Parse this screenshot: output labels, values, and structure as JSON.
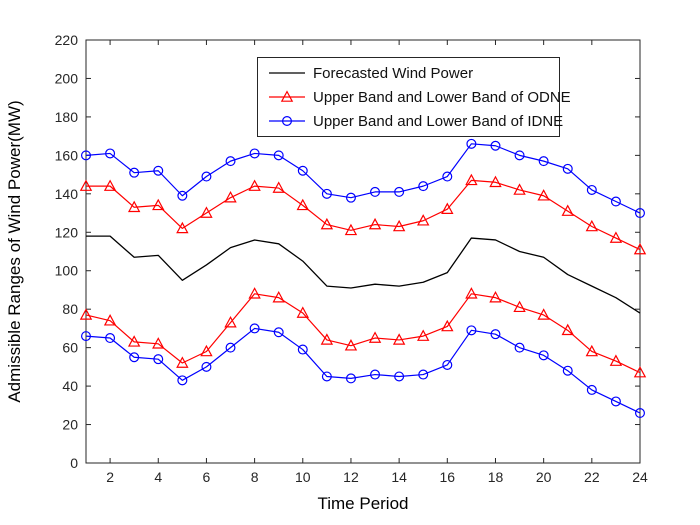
{
  "figure": {
    "background": "#ffffff",
    "frame_color": "#262626",
    "tick_label_color": "#262626",
    "axis_label_color": "#000000"
  },
  "legend": {
    "entries": [
      {
        "label": "Forecasted Wind Power",
        "color": "#000000",
        "marker": "none"
      },
      {
        "label": "Upper Band and Lower Band of ODNE",
        "color": "#ff0000",
        "marker": "triangle"
      },
      {
        "label": "Upper Band and Lower Band of IDNE",
        "color": "#0000ff",
        "marker": "circle"
      }
    ]
  },
  "chart_data": {
    "type": "line",
    "title": "",
    "xlabel": "Time Period",
    "ylabel": "Admissible Ranges of Wind Power(MW)",
    "xlim": [
      1,
      24
    ],
    "ylim": [
      0,
      220
    ],
    "xticks": [
      2,
      4,
      6,
      8,
      10,
      12,
      14,
      16,
      18,
      20,
      22,
      24
    ],
    "yticks": [
      0,
      20,
      40,
      60,
      80,
      100,
      120,
      140,
      160,
      180,
      200,
      220
    ],
    "grid": false,
    "legend_position": "upper-center-inside",
    "x": [
      1,
      2,
      3,
      4,
      5,
      6,
      7,
      8,
      9,
      10,
      11,
      12,
      13,
      14,
      15,
      16,
      17,
      18,
      19,
      20,
      21,
      22,
      23,
      24
    ],
    "series": [
      {
        "name": "Upper Band of IDNE",
        "legend": "Upper Band and Lower Band of IDNE",
        "color": "#0000ff",
        "marker": "circle",
        "values": [
          160,
          161,
          151,
          152,
          139,
          149,
          157,
          161,
          160,
          152,
          140,
          138,
          141,
          141,
          144,
          149,
          166,
          165,
          160,
          157,
          153,
          142,
          136,
          130
        ]
      },
      {
        "name": "Lower Band of IDNE",
        "legend": "Upper Band and Lower Band of IDNE",
        "color": "#0000ff",
        "marker": "circle",
        "values": [
          66,
          65,
          55,
          54,
          43,
          50,
          60,
          70,
          68,
          59,
          45,
          44,
          46,
          45,
          46,
          51,
          69,
          67,
          60,
          56,
          48,
          38,
          32,
          26
        ]
      },
      {
        "name": "Upper Band of ODNE",
        "legend": "Upper Band and Lower Band of ODNE",
        "color": "#ff0000",
        "marker": "triangle",
        "values": [
          144,
          144,
          133,
          134,
          122,
          130,
          138,
          144,
          143,
          134,
          124,
          121,
          124,
          123,
          126,
          132,
          147,
          146,
          142,
          139,
          131,
          123,
          117,
          111
        ]
      },
      {
        "name": "Lower Band of ODNE",
        "legend": "Upper Band and Lower Band of ODNE",
        "color": "#ff0000",
        "marker": "triangle",
        "values": [
          77,
          74,
          63,
          62,
          52,
          58,
          73,
          88,
          86,
          78,
          64,
          61,
          65,
          64,
          66,
          71,
          88,
          86,
          81,
          77,
          69,
          58,
          53,
          47
        ]
      },
      {
        "name": "Forecasted Wind Power",
        "legend": "Forecasted Wind Power",
        "color": "#000000",
        "marker": "none",
        "values": [
          118,
          118,
          107,
          108,
          95,
          103,
          112,
          116,
          114,
          105,
          92,
          91,
          93,
          92,
          94,
          99,
          117,
          116,
          110,
          107,
          98,
          92,
          86,
          78
        ]
      }
    ]
  }
}
